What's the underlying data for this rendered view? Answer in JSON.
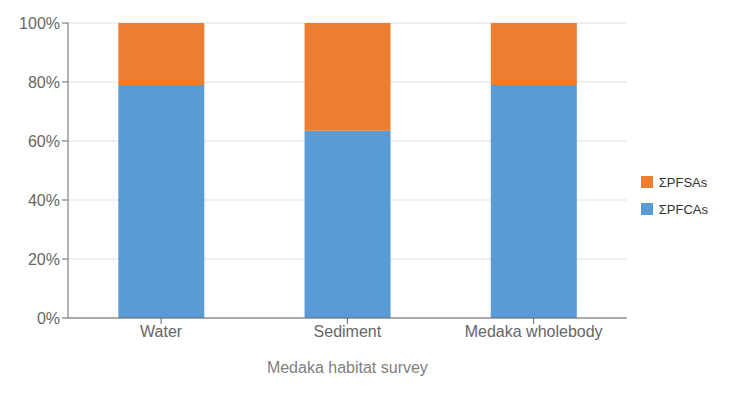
{
  "chart_data": {
    "type": "bar",
    "stacked": true,
    "categories": [
      "Water",
      "Sediment",
      "Medaka wholebody"
    ],
    "series": [
      {
        "name": "ΣPFCAs",
        "color": "#5B9BD5",
        "values": [
          0.79,
          0.635,
          0.79
        ]
      },
      {
        "name": "ΣPFSAs",
        "color": "#ED7D31",
        "values": [
          0.21,
          0.365,
          0.21
        ]
      }
    ],
    "x_label": "Medaka habitat survey",
    "ylim": [
      0,
      1.0
    ],
    "yticks": [
      {
        "value": 0,
        "label": "0%"
      },
      {
        "value": 0.2,
        "label": "20%"
      },
      {
        "value": 0.4,
        "label": "40%"
      },
      {
        "value": 0.6,
        "label": "60%"
      },
      {
        "value": 0.8,
        "label": "80%"
      },
      {
        "value": 1.0,
        "label": "100%"
      }
    ],
    "grid": true,
    "legend": "right"
  }
}
